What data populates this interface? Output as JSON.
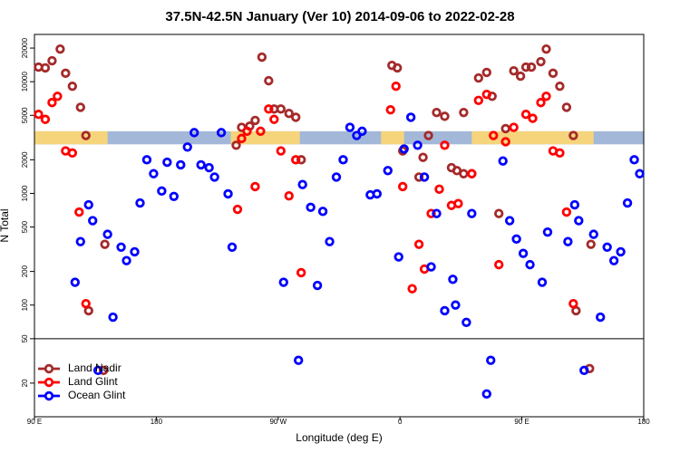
{
  "chart_data": {
    "type": "scatter",
    "title": "37.5N-42.5N January (Ver 10)   2014-09-06 to 2022-02-28",
    "x_label": "Longitude (deg E)",
    "y_label": "N Total",
    "xlim": [
      90,
      540
    ],
    "xticks": [
      {
        "value": 90,
        "label": "90 E"
      },
      {
        "value": 180,
        "label": "180"
      },
      {
        "value": 270,
        "label": "90 W"
      },
      {
        "value": 360,
        "label": "0"
      },
      {
        "value": 450,
        "label": "90 E"
      },
      {
        "value": 540,
        "label": "180"
      }
    ],
    "ylim": [
      10,
      26500
    ],
    "yticks": [
      20,
      50,
      100,
      200,
      500,
      1000,
      2000,
      5000,
      10000,
      20000
    ],
    "y_log": true,
    "hline": 50,
    "legend": "bottom-left",
    "band": {
      "ylim": [
        2750,
        3600
      ],
      "color": "#a3b8d8",
      "land_color": "#f6d47c",
      "land": [
        [
          90,
          144
        ],
        [
          235,
          286
        ],
        [
          346,
          363
        ],
        [
          413,
          503
        ]
      ]
    },
    "series": [
      {
        "name": "Land Nadir",
        "color": "#a52a2a",
        "x": [
          93,
          98,
          103,
          109,
          113,
          118,
          124,
          128,
          130,
          142,
          141,
          239,
          243,
          249,
          253,
          258,
          263,
          267,
          272,
          278,
          283,
          287,
          354,
          358,
          362,
          374,
          377,
          381,
          387,
          393,
          398,
          402,
          407,
          413,
          407,
          418,
          424,
          428,
          433,
          438,
          444,
          449,
          453,
          457,
          464,
          468,
          473,
          478,
          483,
          488,
          490,
          501,
          500
        ],
        "values": [
          13500,
          13300,
          15400,
          19600,
          11900,
          9100,
          5900,
          3300,
          89,
          350,
          26,
          2700,
          3900,
          4000,
          4500,
          16600,
          10200,
          5700,
          5700,
          5200,
          4800,
          2000,
          14000,
          13300,
          2400,
          1400,
          2100,
          3300,
          5300,
          4900,
          1700,
          1600,
          1500,
          1500,
          5300,
          10800,
          12100,
          7400,
          660,
          3800,
          12500,
          11200,
          13500,
          13500,
          15100,
          19600,
          11900,
          9100,
          5900,
          3300,
          89,
          350,
          27
        ]
      },
      {
        "name": "Land Glint",
        "color": "#ff0000",
        "x": [
          93,
          98,
          103,
          107,
          113,
          118,
          123,
          128,
          240,
          243,
          247,
          253,
          257,
          263,
          267,
          272,
          278,
          283,
          287,
          353,
          357,
          362,
          369,
          374,
          378,
          383,
          389,
          393,
          398,
          403,
          413,
          418,
          424,
          429,
          433,
          438,
          444,
          453,
          458,
          464,
          468,
          473,
          478,
          483,
          488
        ],
        "values": [
          5100,
          4600,
          6500,
          7400,
          2400,
          2300,
          680,
          103,
          720,
          3100,
          3600,
          1150,
          3600,
          5700,
          4600,
          2400,
          950,
          2000,
          195,
          5600,
          9100,
          1150,
          140,
          350,
          210,
          660,
          1090,
          2700,
          780,
          810,
          1500,
          6800,
          7700,
          3300,
          230,
          2900,
          3900,
          5100,
          4700,
          6500,
          7400,
          2400,
          2300,
          680,
          103
        ]
      },
      {
        "name": "Ocean Glint",
        "color": "#0000ff",
        "x": [
          120,
          124,
          130,
          133,
          137,
          144,
          148,
          154,
          158,
          164,
          168,
          173,
          178,
          184,
          188,
          193,
          198,
          203,
          208,
          213,
          219,
          223,
          228,
          233,
          236,
          274,
          285,
          288,
          294,
          299,
          303,
          308,
          313,
          318,
          323,
          328,
          332,
          338,
          343,
          351,
          359,
          363,
          368,
          373,
          378,
          383,
          387,
          393,
          399,
          401,
          409,
          413,
          424,
          427,
          436,
          441,
          446,
          451,
          456,
          465,
          469,
          484,
          489,
          492,
          496,
          503,
          508,
          513,
          518,
          523,
          528,
          533,
          537
        ],
        "values": [
          160,
          370,
          790,
          570,
          26,
          430,
          78,
          330,
          250,
          300,
          820,
          2000,
          1500,
          1050,
          1900,
          940,
          1800,
          2600,
          3500,
          1800,
          1700,
          1400,
          3500,
          990,
          330,
          160,
          32,
          1200,
          750,
          150,
          690,
          370,
          1400,
          2000,
          3900,
          3300,
          3600,
          970,
          990,
          1600,
          270,
          2500,
          4800,
          2700,
          1400,
          220,
          660,
          89,
          170,
          100,
          70,
          660,
          16,
          32,
          1950,
          570,
          390,
          290,
          230,
          160,
          450,
          370,
          790,
          570,
          26,
          430,
          78,
          330,
          250,
          300,
          820,
          2000,
          1500
        ]
      }
    ]
  }
}
